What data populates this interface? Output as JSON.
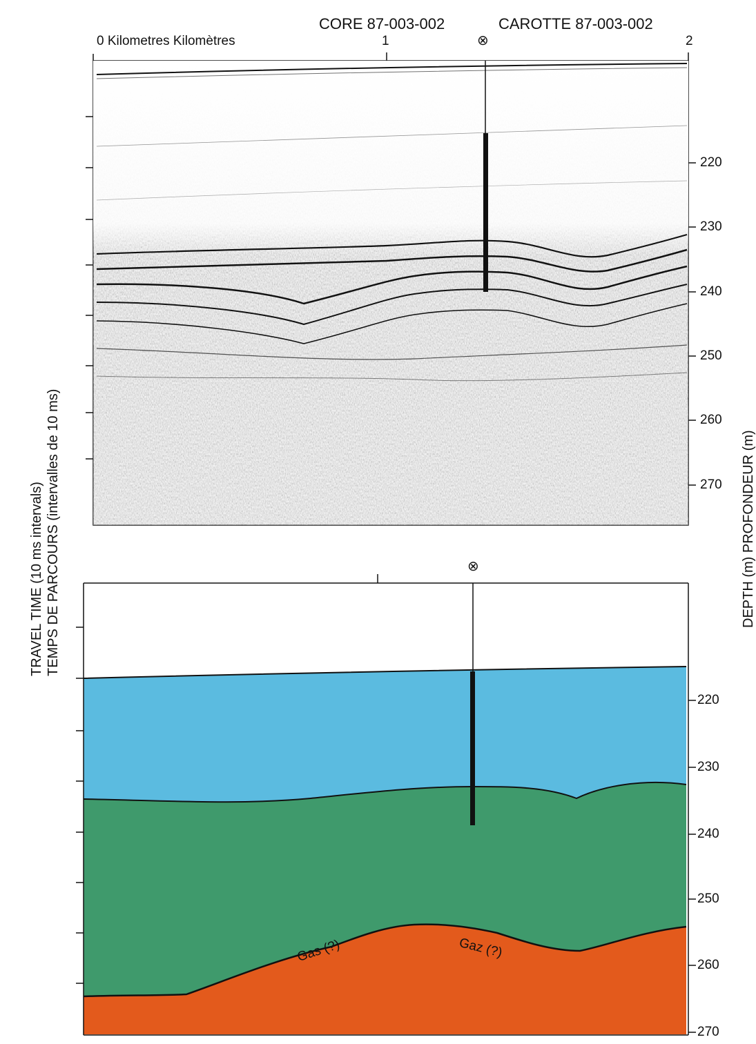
{
  "core": {
    "label_en": "CORE 87-003-002",
    "label_fr": "CAROTTE 87-003-002",
    "marker_symbol": "⊗"
  },
  "scale": {
    "label": "0 Kilometres  Kilomètres",
    "ticks": [
      "1",
      "2"
    ]
  },
  "axis_left": {
    "line1": "TRAVEL TIME (10 ms intervals)",
    "line2": "TEMPS DE PARCOURS (intervalles de 10 ms)"
  },
  "axis_right": {
    "label": "DEPTH (m)  PROFONDEUR (m)"
  },
  "depth_labels": [
    "220",
    "230",
    "240",
    "250",
    "260",
    "270"
  ],
  "interpretation": {
    "gas_label_en": "Gas (?)",
    "gas_label_fr": "Gaz (?)",
    "colors": {
      "water_upper": "#5bbbe0",
      "middle": "#3f9a6c",
      "lower": "#e35a1c",
      "boundary": "#111111"
    }
  }
}
